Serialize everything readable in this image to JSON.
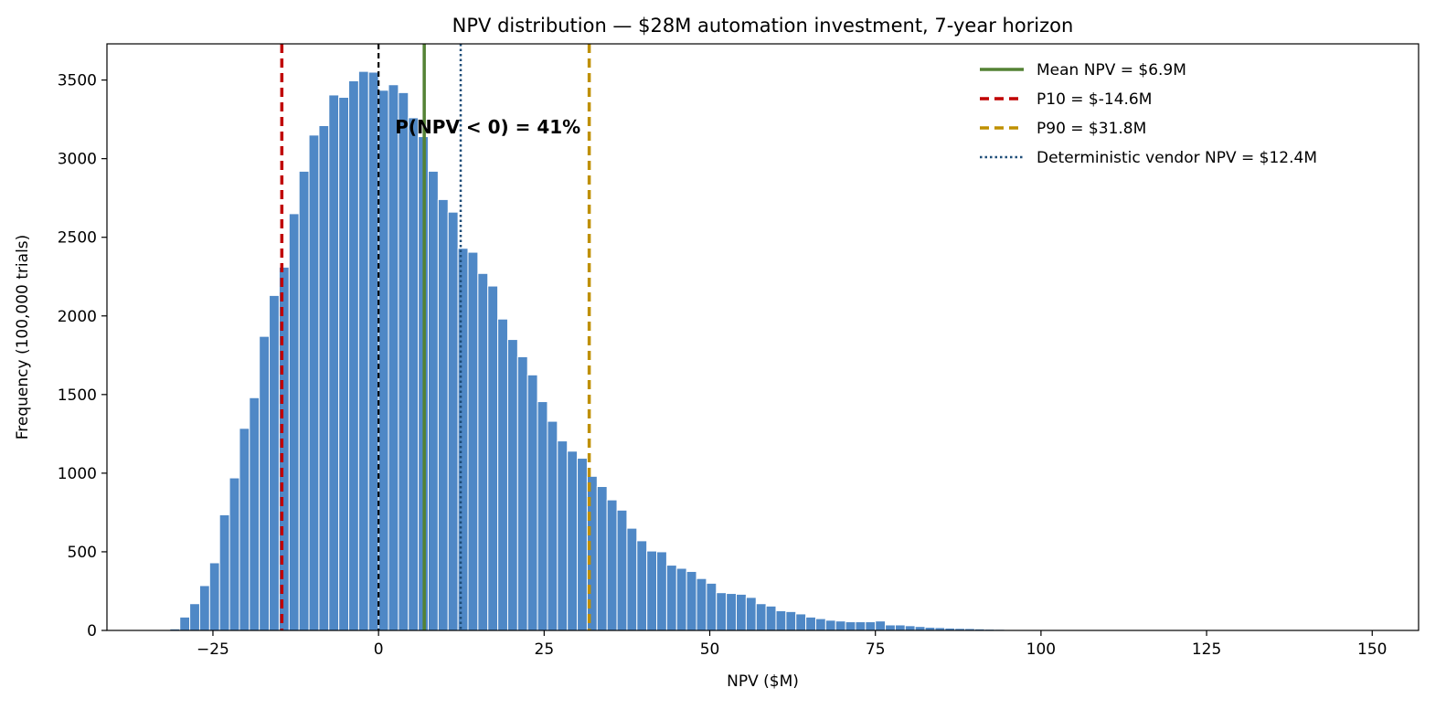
{
  "chart_data": {
    "type": "bar",
    "title": "NPV distribution — $28M automation investment, 7-year horizon",
    "xlabel": "NPV  ($M)",
    "ylabel": "Frequency  (100,000 trials)",
    "xlim": [
      -41,
      157
    ],
    "ylim": [
      0,
      3730
    ],
    "x_ticks": [
      -25,
      0,
      25,
      50,
      75,
      100,
      125,
      150
    ],
    "x_tick_labels": [
      "−25",
      "0",
      "25",
      "50",
      "75",
      "100",
      "125",
      "150"
    ],
    "y_ticks": [
      0,
      500,
      1000,
      1500,
      2000,
      2500,
      3000,
      3500
    ],
    "y_tick_labels": [
      "0",
      "500",
      "1000",
      "1500",
      "2000",
      "2500",
      "3000",
      "3500"
    ],
    "grid": false,
    "legend_position": "top-right",
    "bin_start": -31.5,
    "bin_width": 1.5,
    "bin_counts": [
      10,
      85,
      170,
      285,
      430,
      735,
      970,
      1285,
      1480,
      1870,
      2130,
      2310,
      2650,
      2920,
      3150,
      3210,
      3405,
      3390,
      3495,
      3555,
      3550,
      3435,
      3470,
      3420,
      3260,
      3140,
      2920,
      2740,
      2660,
      2430,
      2405,
      2270,
      2190,
      1980,
      1850,
      1740,
      1625,
      1455,
      1330,
      1205,
      1140,
      1095,
      980,
      915,
      830,
      765,
      650,
      570,
      505,
      500,
      415,
      395,
      375,
      330,
      300,
      240,
      235,
      230,
      210,
      170,
      155,
      125,
      120,
      105,
      85,
      75,
      65,
      60,
      55,
      55,
      55,
      60,
      35,
      35,
      30,
      25,
      20,
      18,
      15,
      13,
      12,
      10,
      8,
      7,
      5,
      4,
      3,
      3,
      2,
      2,
      2,
      1,
      1,
      1,
      1,
      1,
      1,
      1,
      1,
      1,
      1,
      1,
      1,
      1,
      1
    ],
    "bar_color": "#4f88c6",
    "reference_lines": [
      {
        "label": "Mean NPV = $6.9M",
        "x": 6.9,
        "color": "#548235",
        "style": "solid"
      },
      {
        "label": "P10 = $-14.6M",
        "x": -14.6,
        "color": "#c00000",
        "style": "dashed"
      },
      {
        "label": "P90 = $31.8M",
        "x": 31.8,
        "color": "#bf9000",
        "style": "dashed"
      },
      {
        "label": "Deterministic vendor NPV = $12.4M",
        "x": 12.4,
        "color": "#1f4e79",
        "style": "dotted"
      }
    ],
    "zero_line": {
      "x": 0,
      "color": "#000000",
      "style": "dashed"
    },
    "annotation": {
      "text": "P(NPV < 0) = 41%",
      "x": 2.5,
      "y": 3200
    }
  }
}
